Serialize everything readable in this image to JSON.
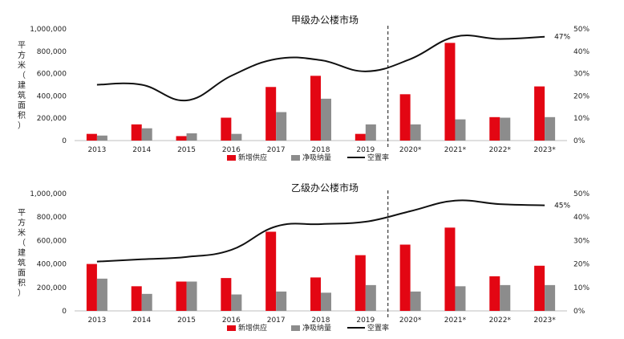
{
  "chart_data": [
    {
      "type": "bar",
      "title": "甲级办公楼市场",
      "ylabel": "平方米（建筑面积）",
      "categories": [
        "2013",
        "2014",
        "2015",
        "2016",
        "2017",
        "2018",
        "2019",
        "2020*",
        "2021*",
        "2022*",
        "2023*"
      ],
      "ylim": [
        0,
        1000000
      ],
      "y_ticks": [
        "0",
        "200,000",
        "400,000",
        "600,000",
        "800,000",
        "1,000,000"
      ],
      "y2lim": [
        0,
        50
      ],
      "y2_ticks": [
        "0%",
        "10%",
        "20%",
        "30%",
        "40%",
        "50%"
      ],
      "series": [
        {
          "name": "新增供应",
          "type": "bar",
          "color": "#e30613",
          "values": [
            60000,
            145000,
            40000,
            205000,
            480000,
            580000,
            60000,
            415000,
            875000,
            210000,
            485000
          ]
        },
        {
          "name": "净吸纳量",
          "type": "bar",
          "color": "#8c8c8c",
          "values": [
            45000,
            110000,
            65000,
            60000,
            255000,
            375000,
            145000,
            145000,
            190000,
            205000,
            210000
          ]
        },
        {
          "name": "空置率",
          "type": "line",
          "color": "#111111",
          "values": [
            25,
            25,
            18,
            29,
            36.5,
            36,
            31,
            36.5,
            46.5,
            45.5,
            46.5
          ]
        }
      ],
      "forecast_divider_after": "2019",
      "end_label": "47%",
      "legend_position": "bottom"
    },
    {
      "type": "bar",
      "title": "乙级办公楼市场",
      "ylabel": "平方米（建筑面积）",
      "categories": [
        "2013",
        "2014",
        "2015",
        "2016",
        "2017",
        "2018",
        "2019",
        "2020*",
        "2021*",
        "2022*",
        "2023*"
      ],
      "ylim": [
        0,
        1000000
      ],
      "y_ticks": [
        "0",
        "200,000",
        "400,000",
        "600,000",
        "800,000",
        "1,000,000"
      ],
      "y2lim": [
        0,
        50
      ],
      "y2_ticks": [
        "0%",
        "10%",
        "20%",
        "30%",
        "40%",
        "50%"
      ],
      "series": [
        {
          "name": "新增供应",
          "type": "bar",
          "color": "#e30613",
          "values": [
            400000,
            210000,
            250000,
            280000,
            675000,
            285000,
            475000,
            565000,
            710000,
            295000,
            385000
          ]
        },
        {
          "name": "净吸纳量",
          "type": "bar",
          "color": "#8c8c8c",
          "values": [
            275000,
            145000,
            250000,
            140000,
            165000,
            155000,
            220000,
            165000,
            210000,
            220000,
            220000
          ]
        },
        {
          "name": "空置率",
          "type": "line",
          "color": "#111111",
          "values": [
            21,
            22,
            23,
            26,
            36,
            37,
            38,
            42.5,
            47,
            45.5,
            45
          ]
        }
      ],
      "forecast_divider_after": "2019",
      "end_label": "45%",
      "legend_position": "bottom"
    }
  ]
}
